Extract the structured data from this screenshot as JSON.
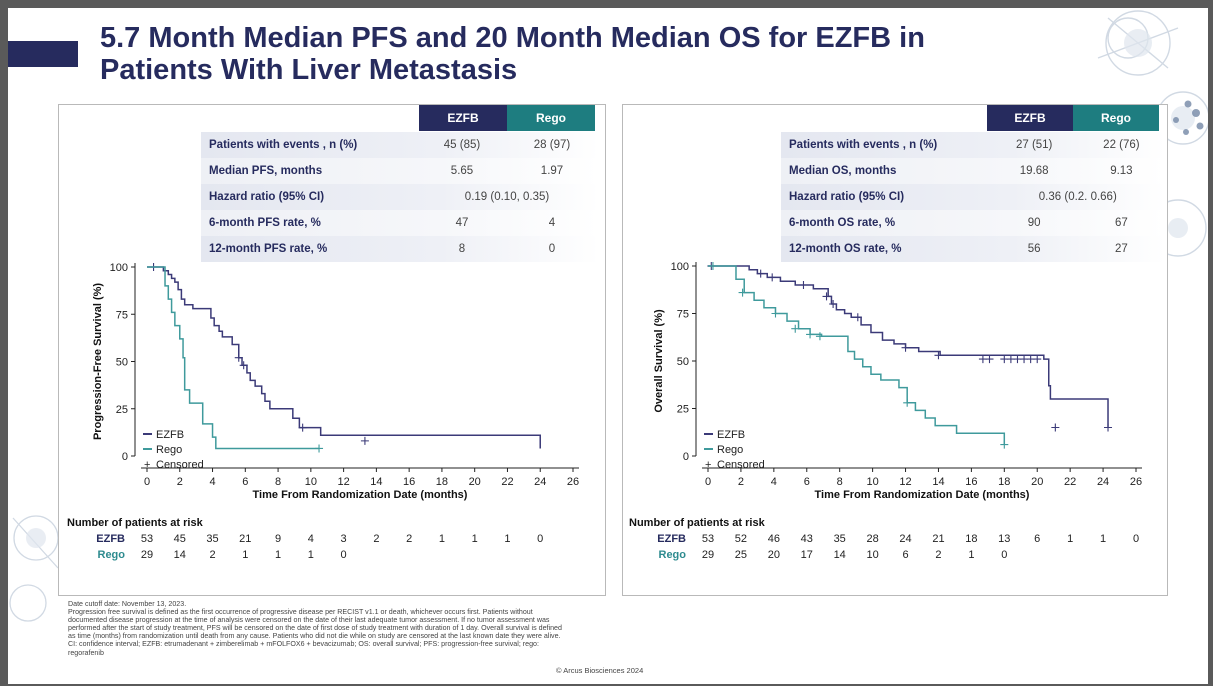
{
  "slide": {
    "title_line1": "5.7 Month Median PFS and 20 Month Median OS for EZFB in",
    "title_line2": "Patients With Liver Metastasis",
    "copyright": "© Arcus Biosciences 2024",
    "footnotes": [
      "Date cutoff date: November 13, 2023.",
      "Progression free survival is defined as the first occurrence of progressive disease per RECIST v1.1 or death, whichever occurs first. Patients without documented disease progression at the time of analysis were censored on the date of their last adequate tumor assessment. If no tumor assessment was performed after the start of study treatment, PFS will be censored on the date of first dose of study treatment with duration of 1 day. Overall survival is defined as time (months) from randomization until death from any cause. Patients who did not die while on study are censored at the last known date they were alive.",
      "CI: confidence interval; EZFB: etrumadenant + zimberelimab + mFOLFOX6 + bevacizumab; OS: overall survival; PFS: progression-free survival; rego: regorafenib"
    ]
  },
  "colors": {
    "ezfb": "#262b5e",
    "rego": "#2e8b8f",
    "ezfb_line": "#3b3a78",
    "rego_line": "#3f9a9c"
  },
  "pfs_table": {
    "headers": [
      "EZFB",
      "Rego"
    ],
    "rows": [
      {
        "label": "Patients with events , n (%)",
        "ezfb": "45 (85)",
        "rego": "28 (97)"
      },
      {
        "label": "Median PFS, months",
        "ezfb": "5.65",
        "rego": "1.97"
      },
      {
        "label": "Hazard ratio (95% CI)",
        "combined": "0.19 (0.10, 0.35)"
      },
      {
        "label": "6-month PFS rate, %",
        "ezfb": "47",
        "rego": "4"
      },
      {
        "label": "12-month PFS rate, %",
        "ezfb": "8",
        "rego": "0"
      }
    ]
  },
  "os_table": {
    "headers": [
      "EZFB",
      "Rego"
    ],
    "rows": [
      {
        "label": "Patients with events , n (%)",
        "ezfb": "27 (51)",
        "rego": "22 (76)"
      },
      {
        "label": "Median OS, months",
        "ezfb": "19.68",
        "rego": "9.13"
      },
      {
        "label": "Hazard ratio (95% CI)",
        "combined": "0.36 (0.2. 0.66)"
      },
      {
        "label": "6-month OS rate, %",
        "ezfb": "90",
        "rego": "67"
      },
      {
        "label": "12-month OS rate, %",
        "ezfb": "56",
        "rego": "27"
      }
    ]
  },
  "chart_data": [
    {
      "type": "line",
      "title": "",
      "xlabel": "Time From Randomization Date (months)",
      "ylabel": "Progression-Free Survival (%)",
      "xlim": [
        0,
        26
      ],
      "ylim": [
        0,
        100
      ],
      "xticks": [
        0,
        2,
        4,
        6,
        8,
        10,
        12,
        14,
        16,
        18,
        20,
        22,
        24,
        26
      ],
      "yticks": [
        0,
        25,
        50,
        75,
        100
      ],
      "legend": [
        "EZFB",
        "Rego",
        "Censored"
      ],
      "legend_censored_symbol": "+",
      "legend_position": "bottom-left",
      "series": [
        {
          "name": "EZFB",
          "x": [
            0,
            1.0,
            1.3,
            1.5,
            1.7,
            1.9,
            2.1,
            2.3,
            2.8,
            3.9,
            4.1,
            4.4,
            4.6,
            5.2,
            5.6,
            5.8,
            6.1,
            6.3,
            6.6,
            7.0,
            7.2,
            7.5,
            8.9,
            9.3,
            10.6,
            24.0,
            24.0
          ],
          "y": [
            100,
            98,
            96,
            94,
            92,
            88,
            83,
            80,
            78,
            73,
            69,
            66,
            63,
            59,
            52,
            48,
            44,
            40,
            37,
            33,
            29,
            25,
            20,
            15,
            11,
            8,
            4
          ],
          "censored_x": [
            0.4,
            5.6,
            5.9,
            9.5,
            13.3
          ],
          "censored_y": [
            100,
            52,
            48,
            15,
            8
          ]
        },
        {
          "name": "Rego",
          "x": [
            0,
            1.1,
            1.3,
            1.5,
            1.7,
            2.0,
            2.2,
            2.3,
            2.6,
            3.4,
            4.0,
            4.2,
            10.5
          ],
          "y": [
            100,
            90,
            83,
            76,
            69,
            62,
            52,
            35,
            28,
            17,
            10,
            4,
            4
          ],
          "censored_x": [
            10.5
          ],
          "censored_y": [
            4
          ]
        }
      ],
      "risk_table": {
        "header": "Number of patients at risk",
        "ezfb_label": "EZFB",
        "rego_label": "Rego",
        "ezfb": [
          "53",
          "45",
          "35",
          "21",
          "9",
          "4",
          "3",
          "2",
          "2",
          "1",
          "1",
          "1",
          "0"
        ],
        "rego": [
          "29",
          "14",
          "2",
          "1",
          "1",
          "1",
          "0"
        ]
      }
    },
    {
      "type": "line",
      "title": "",
      "xlabel": "Time From Randomization Date (months)",
      "ylabel": "Overall Survival (%)",
      "xlim": [
        0,
        26
      ],
      "ylim": [
        0,
        100
      ],
      "xticks": [
        0,
        2,
        4,
        6,
        8,
        10,
        12,
        14,
        16,
        18,
        20,
        22,
        24,
        26
      ],
      "yticks": [
        0,
        25,
        50,
        75,
        100
      ],
      "legend": [
        "EZFB",
        "Rego",
        "Censored"
      ],
      "legend_censored_symbol": "+",
      "legend_position": "bottom-left",
      "series": [
        {
          "name": "EZFB",
          "x": [
            0,
            2.5,
            3.0,
            3.6,
            4.4,
            5.3,
            6.4,
            7.3,
            7.5,
            7.8,
            8.3,
            8.7,
            9.3,
            9.9,
            10.6,
            11.3,
            12.0,
            12.8,
            14.1,
            20.4,
            20.7,
            20.8,
            24.3
          ],
          "y": [
            100,
            98,
            96,
            94,
            92,
            90,
            88,
            84,
            80,
            77,
            75,
            73,
            69,
            65,
            61,
            59,
            57,
            55,
            53,
            51,
            37,
            30,
            15
          ],
          "censored_x": [
            0.2,
            3.2,
            3.9,
            5.8,
            7.2,
            7.6,
            9.1,
            12.0,
            14.0,
            16.7,
            17.1,
            18.0,
            18.4,
            18.8,
            19.2,
            19.6,
            20.0,
            21.1,
            24.3
          ],
          "censored_y": [
            100,
            96,
            94,
            90,
            84,
            80,
            73,
            57,
            53,
            51,
            51,
            51,
            51,
            51,
            51,
            51,
            51,
            15,
            15
          ]
        },
        {
          "name": "Rego",
          "x": [
            0,
            1.7,
            2.2,
            2.8,
            3.4,
            4.1,
            4.8,
            5.5,
            6.2,
            6.9,
            8.5,
            8.9,
            9.4,
            9.9,
            10.5,
            11.6,
            12.1,
            12.6,
            13.2,
            13.8,
            15.1,
            18.0
          ],
          "y": [
            100,
            93,
            86,
            82,
            78,
            75,
            71,
            67,
            64,
            63,
            55,
            51,
            47,
            43,
            40,
            36,
            28,
            24,
            20,
            16,
            12,
            6
          ],
          "censored_x": [
            0.3,
            2.1,
            4.1,
            5.3,
            6.2,
            6.8,
            12.1,
            18.0
          ],
          "censored_y": [
            100,
            86,
            75,
            67,
            64,
            63,
            28,
            6
          ]
        }
      ],
      "risk_table": {
        "header": "Number of patients at risk",
        "ezfb_label": "EZFB",
        "rego_label": "Rego",
        "ezfb": [
          "53",
          "52",
          "46",
          "43",
          "35",
          "28",
          "24",
          "21",
          "18",
          "13",
          "6",
          "1",
          "1",
          "0"
        ],
        "rego": [
          "29",
          "25",
          "20",
          "17",
          "14",
          "10",
          "6",
          "2",
          "1",
          "0"
        ]
      }
    }
  ]
}
